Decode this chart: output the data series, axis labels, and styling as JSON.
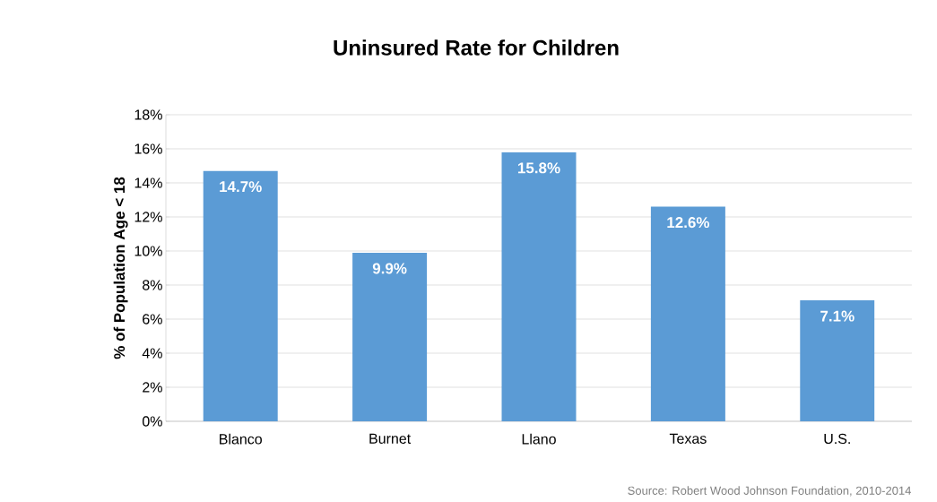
{
  "chart_data": {
    "type": "bar",
    "title": "Uninsured Rate for Children",
    "ylabel": "% of Population Age < 18",
    "categories": [
      "Blanco",
      "Burnet",
      "Llano",
      "Texas",
      "U.S."
    ],
    "values": [
      14.7,
      9.9,
      15.8,
      12.6,
      7.1
    ],
    "value_labels": [
      "14.7%",
      "9.9%",
      "15.8%",
      "12.6%",
      "7.1%"
    ],
    "color": "#5b9bd5",
    "ylim": [
      0,
      18
    ],
    "yticks": [
      {
        "value": 0,
        "label": "0%"
      },
      {
        "value": 2,
        "label": "2%"
      },
      {
        "value": 4,
        "label": "4%"
      },
      {
        "value": 6,
        "label": "6%"
      },
      {
        "value": 8,
        "label": "8%"
      },
      {
        "value": 10,
        "label": "10%"
      },
      {
        "value": 12,
        "label": "12%"
      },
      {
        "value": 14,
        "label": "14%"
      },
      {
        "value": 16,
        "label": "16%"
      },
      {
        "value": 18,
        "label": "18%"
      }
    ],
    "grid": "y",
    "annotations": [
      "Source: Robert Wood Johnson Foundation, 2010-2014"
    ]
  }
}
